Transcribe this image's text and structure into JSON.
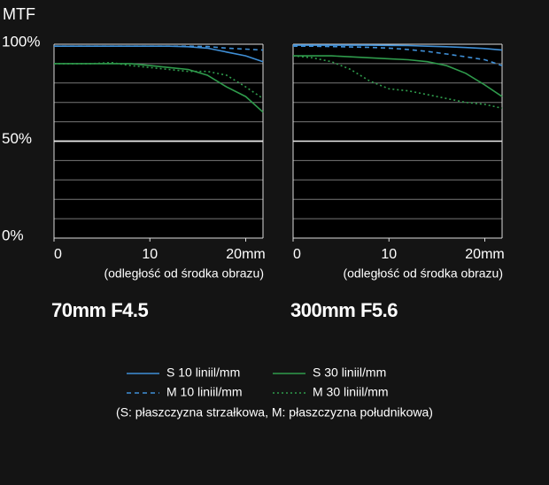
{
  "title": "MTF",
  "chart_data": [
    {
      "type": "line",
      "subtitle": "70mm F4.5",
      "xlabel": "(odległość od środka obrazu)",
      "x": [
        0,
        2,
        4,
        6,
        8,
        10,
        12,
        14,
        16,
        18,
        20,
        21.8
      ],
      "xlim": [
        0,
        21.8
      ],
      "ylim": [
        0,
        100
      ],
      "xticks": [
        0,
        10,
        {
          "value": 20,
          "label": "20mm"
        }
      ],
      "yticks": [
        {
          "value": 0,
          "label": "0%"
        },
        {
          "value": 50,
          "label": "50%"
        },
        {
          "value": 100,
          "label": "100%"
        }
      ],
      "gridlines": [
        10,
        20,
        30,
        40,
        50,
        60,
        70,
        80,
        90
      ],
      "series": [
        {
          "name": "S 10 liniil/mm",
          "color": "#3f8fd6",
          "dash": "solid",
          "values": [
            99,
            99,
            99,
            99,
            99,
            99,
            99,
            98.7,
            98,
            96,
            94,
            91
          ]
        },
        {
          "name": "M 10 liniil/mm",
          "color": "#3f8fd6",
          "dash": "dashed",
          "values": [
            99,
            99,
            99,
            99,
            99,
            99,
            99,
            99,
            98.8,
            98,
            97.5,
            97
          ]
        },
        {
          "name": "S 30 liniil/mm",
          "color": "#2f9b4c",
          "dash": "solid",
          "values": [
            90,
            90,
            90,
            90,
            90,
            89,
            88,
            87,
            84,
            78,
            73,
            65
          ]
        },
        {
          "name": "M 30 liniil/mm",
          "color": "#2f9b4c",
          "dash": "dotted",
          "values": [
            90,
            90,
            90,
            90.5,
            89,
            88,
            87,
            86,
            86,
            84,
            78,
            72
          ]
        }
      ]
    },
    {
      "type": "line",
      "subtitle": "300mm F5.6",
      "xlabel": "(odległość od środka obrazu)",
      "x": [
        0,
        2,
        4,
        6,
        8,
        10,
        12,
        14,
        16,
        18,
        20,
        21.8
      ],
      "xlim": [
        0,
        21.8
      ],
      "ylim": [
        0,
        100
      ],
      "xticks": [
        0,
        10,
        {
          "value": 20,
          "label": "20mm"
        }
      ],
      "gridlines": [
        10,
        20,
        30,
        40,
        50,
        60,
        70,
        80,
        90
      ],
      "series": [
        {
          "color": "#3f8fd6",
          "dash": "solid",
          "values": [
            99.5,
            99.5,
            99.5,
            99.5,
            99.5,
            99.4,
            99.3,
            99,
            98.7,
            98.3,
            97.8,
            97
          ]
        },
        {
          "color": "#3f8fd6",
          "dash": "dashed",
          "values": [
            99,
            99,
            98.8,
            98.6,
            98.4,
            98,
            97.3,
            96.3,
            95,
            93.5,
            92,
            89
          ]
        },
        {
          "color": "#2f9b4c",
          "dash": "solid",
          "values": [
            94,
            94,
            94,
            93.5,
            93,
            92.5,
            92,
            91,
            89,
            85,
            79,
            73
          ]
        },
        {
          "color": "#2f9b4c",
          "dash": "dotted",
          "values": [
            94,
            93,
            91,
            87,
            81,
            77,
            76,
            74,
            72,
            70,
            69,
            67
          ]
        }
      ]
    }
  ],
  "legend_note": "(S: płaszczyzna strzałkowa, M: płaszczyzna południkowa)"
}
